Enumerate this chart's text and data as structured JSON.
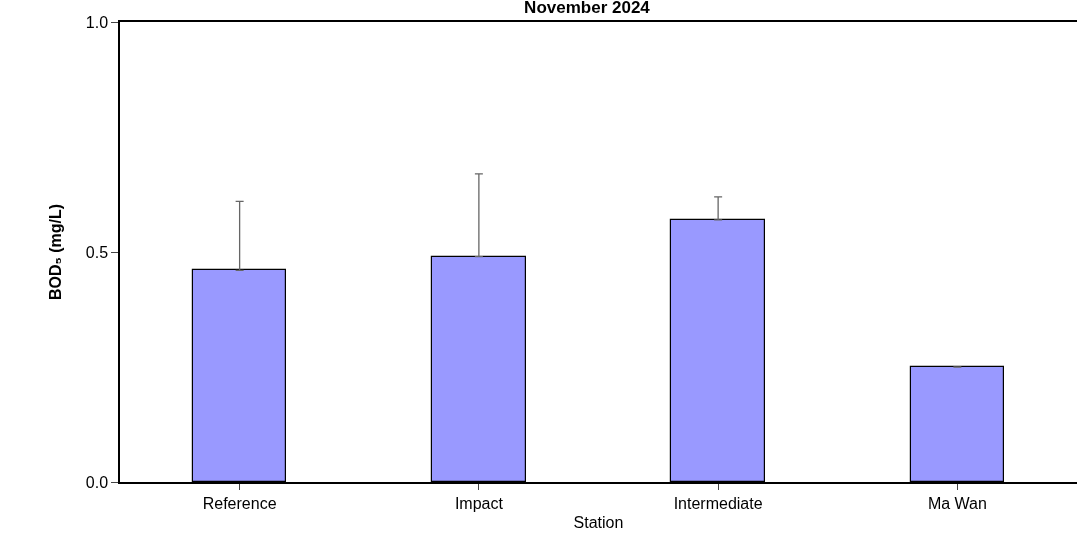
{
  "chart_data": {
    "type": "bar",
    "title": "November 2024",
    "xlabel": "Station",
    "ylabel": "BOD₅ (mg/L)",
    "categories": [
      "Reference",
      "Impact",
      "Intermediate",
      "Ma Wan"
    ],
    "values": [
      0.46,
      0.49,
      0.57,
      0.25
    ],
    "errors": [
      [
        0.46,
        0.61
      ],
      [
        0.49,
        0.67
      ],
      [
        0.57,
        0.62
      ],
      [
        0.25,
        0.25
      ]
    ],
    "color": "#9999ff",
    "ylim": [
      0,
      1
    ],
    "yticks": [
      {
        "value": 0,
        "label": "0.0"
      },
      {
        "value": 0.5,
        "label": "0.5"
      },
      {
        "value": 1,
        "label": "1.0"
      }
    ],
    "legend": false
  }
}
